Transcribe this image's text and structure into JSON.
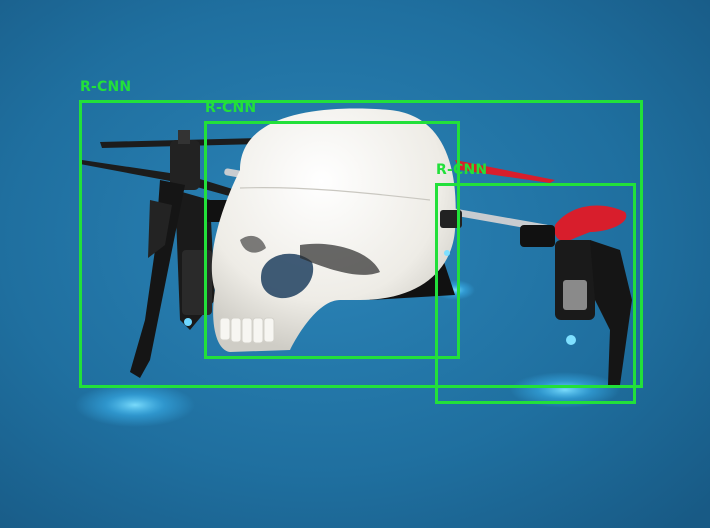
{
  "colors": {
    "background": "#1f6f9f",
    "box": "#22e03a",
    "skull": "#f2f0ea",
    "drone_body": "#1a1a1a",
    "propeller_red": "#d81e2c",
    "led_glow": "#3fc0ff"
  },
  "detections": [
    {
      "label": "R-CNN",
      "object": "drone"
    },
    {
      "label": "R-CNN",
      "object": "skull"
    },
    {
      "label": "R-CNN",
      "object": "drone-arm"
    }
  ]
}
